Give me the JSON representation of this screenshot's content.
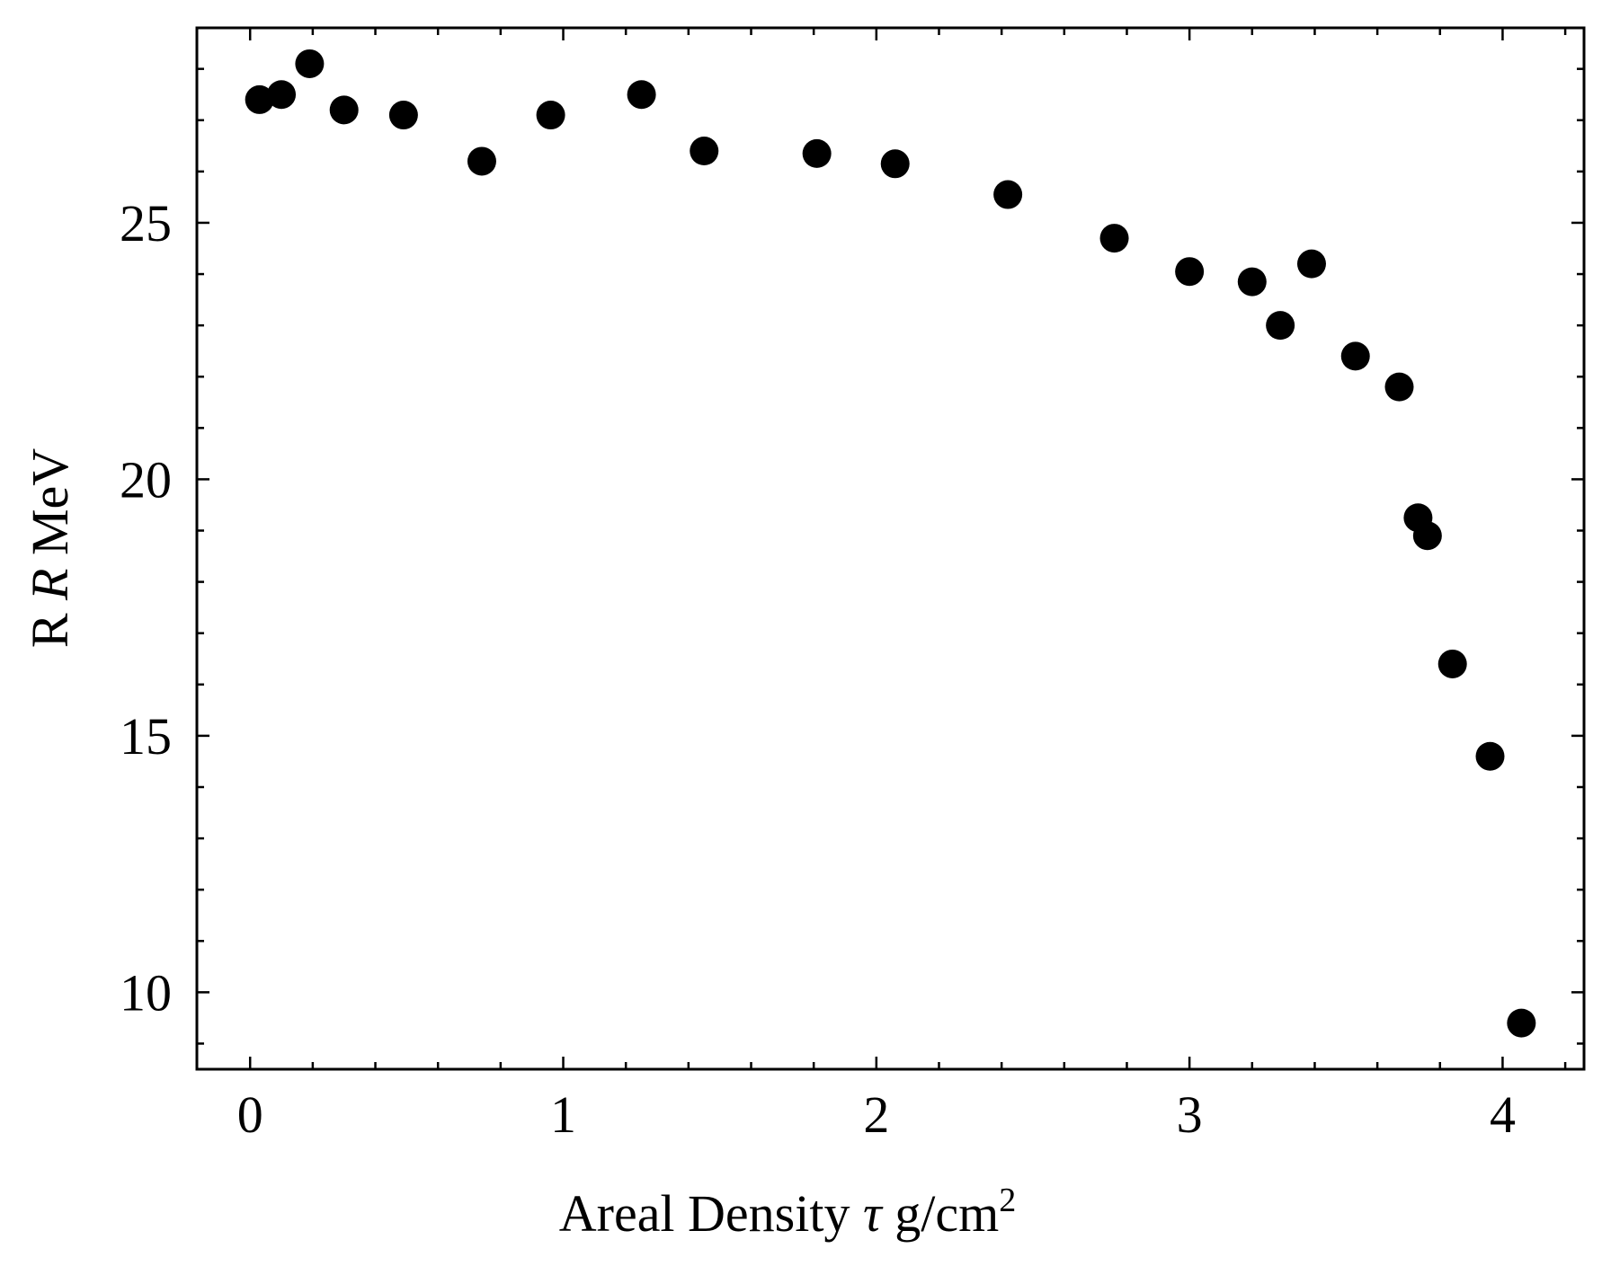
{
  "chart_data": {
    "type": "scatter",
    "xlabel": {
      "prefix": "Areal Density ",
      "symbol": "τ",
      "unit_base": " g/cm",
      "unit_exp": "2"
    },
    "ylabel": {
      "prefix": "R ",
      "symbol": "R",
      "unit": " MeV"
    },
    "xlim": [
      -0.17,
      4.26
    ],
    "ylim": [
      8.5,
      28.8
    ],
    "x_major_ticks": [
      0,
      1,
      2,
      3,
      4
    ],
    "x_tick_labels": [
      "0",
      "1",
      "2",
      "3",
      "4"
    ],
    "x_minor_step": 0.2,
    "y_major_ticks": [
      10,
      15,
      20,
      25
    ],
    "y_tick_labels": [
      "10",
      "15",
      "20",
      "25"
    ],
    "y_minor_step": 1,
    "grid": false,
    "legend": "none",
    "marker_color": "#000000",
    "points": [
      {
        "x": 0.03,
        "y": 27.4
      },
      {
        "x": 0.1,
        "y": 27.5
      },
      {
        "x": 0.19,
        "y": 28.1
      },
      {
        "x": 0.3,
        "y": 27.2
      },
      {
        "x": 0.49,
        "y": 27.1
      },
      {
        "x": 0.74,
        "y": 26.2
      },
      {
        "x": 0.96,
        "y": 27.1
      },
      {
        "x": 1.25,
        "y": 27.5
      },
      {
        "x": 1.45,
        "y": 26.4
      },
      {
        "x": 1.81,
        "y": 26.35
      },
      {
        "x": 2.06,
        "y": 26.15
      },
      {
        "x": 2.42,
        "y": 25.55
      },
      {
        "x": 2.76,
        "y": 24.7
      },
      {
        "x": 3.0,
        "y": 24.05
      },
      {
        "x": 3.2,
        "y": 23.85
      },
      {
        "x": 3.29,
        "y": 23.0
      },
      {
        "x": 3.39,
        "y": 24.2
      },
      {
        "x": 3.53,
        "y": 22.4
      },
      {
        "x": 3.67,
        "y": 21.8
      },
      {
        "x": 3.73,
        "y": 19.25
      },
      {
        "x": 3.76,
        "y": 18.9
      },
      {
        "x": 3.84,
        "y": 16.4
      },
      {
        "x": 3.96,
        "y": 14.6
      },
      {
        "x": 4.06,
        "y": 9.4
      }
    ]
  }
}
